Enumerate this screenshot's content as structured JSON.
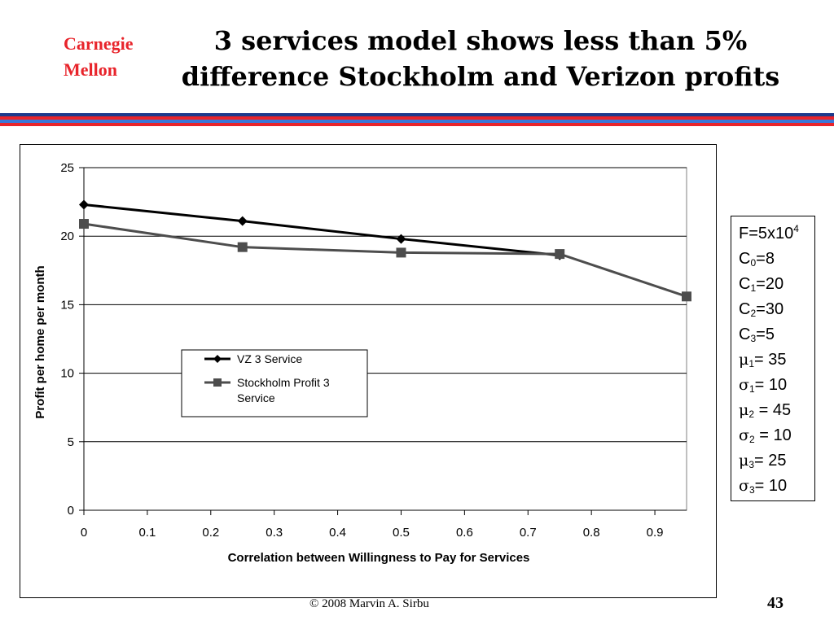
{
  "logo": {
    "line1": "Carnegie",
    "line2": "Mellon"
  },
  "title": {
    "line1": "3 services model shows less than 5%",
    "line2": "difference Stockholm and Verizon profits"
  },
  "header_stripe_colors": [
    "#1c3a8c",
    "#e8242b",
    "#3a77d8",
    "#e8242b"
  ],
  "chart_data": {
    "type": "line",
    "title": "",
    "xlabel": "Correlation between Willingness to Pay for Services",
    "ylabel": "Profit per home per month",
    "xlim": [
      0,
      0.95
    ],
    "ylim": [
      0,
      25
    ],
    "x_ticks": [
      "0",
      "0.1",
      "0.2",
      "0.3",
      "0.4",
      "0.5",
      "0.6",
      "0.7",
      "0.8",
      "0.9"
    ],
    "y_ticks": [
      "0",
      "5",
      "10",
      "15",
      "20",
      "25"
    ],
    "grid": "horizontal",
    "legend_position": "center-left",
    "series": [
      {
        "name": "VZ 3 Service",
        "marker": "diamond",
        "color": "#000000",
        "x": [
          0,
          0.25,
          0.5,
          0.75
        ],
        "y": [
          22.3,
          21.1,
          19.8,
          18.6
        ]
      },
      {
        "name": "Stockholm Profit 3 Service",
        "legend_lines": [
          "Stockholm Profit 3",
          "Service"
        ],
        "marker": "square",
        "color": "#4d4d4d",
        "x": [
          0,
          0.25,
          0.5,
          0.75,
          0.95
        ],
        "y": [
          20.9,
          19.2,
          18.8,
          18.7,
          15.6
        ]
      }
    ]
  },
  "params": [
    {
      "sym": "F",
      "sub": "",
      "sup": "4",
      "rest": "=5x10"
    },
    {
      "sym": "C",
      "sub": "0",
      "rest": "=8"
    },
    {
      "sym": "C",
      "sub": "1",
      "rest": "=20"
    },
    {
      "sym": "C",
      "sub": "2",
      "rest": "=30"
    },
    {
      "sym": "C",
      "sub": "3",
      "rest": "=5"
    },
    {
      "sym": "μ",
      "sub": "1",
      "rest": "= 35"
    },
    {
      "sym": "σ",
      "sub": "1",
      "rest": "= 10"
    },
    {
      "sym": "μ",
      "sub": "2",
      "rest": " = 45"
    },
    {
      "sym": "σ",
      "sub": "2",
      "rest": " = 10"
    },
    {
      "sym": "μ",
      "sub": "3",
      "rest": "= 25"
    },
    {
      "sym": "σ",
      "sub": "3",
      "rest": "= 10"
    }
  ],
  "footer": {
    "copyright": "©  2008  Marvin A. Sirbu",
    "page": "43"
  }
}
